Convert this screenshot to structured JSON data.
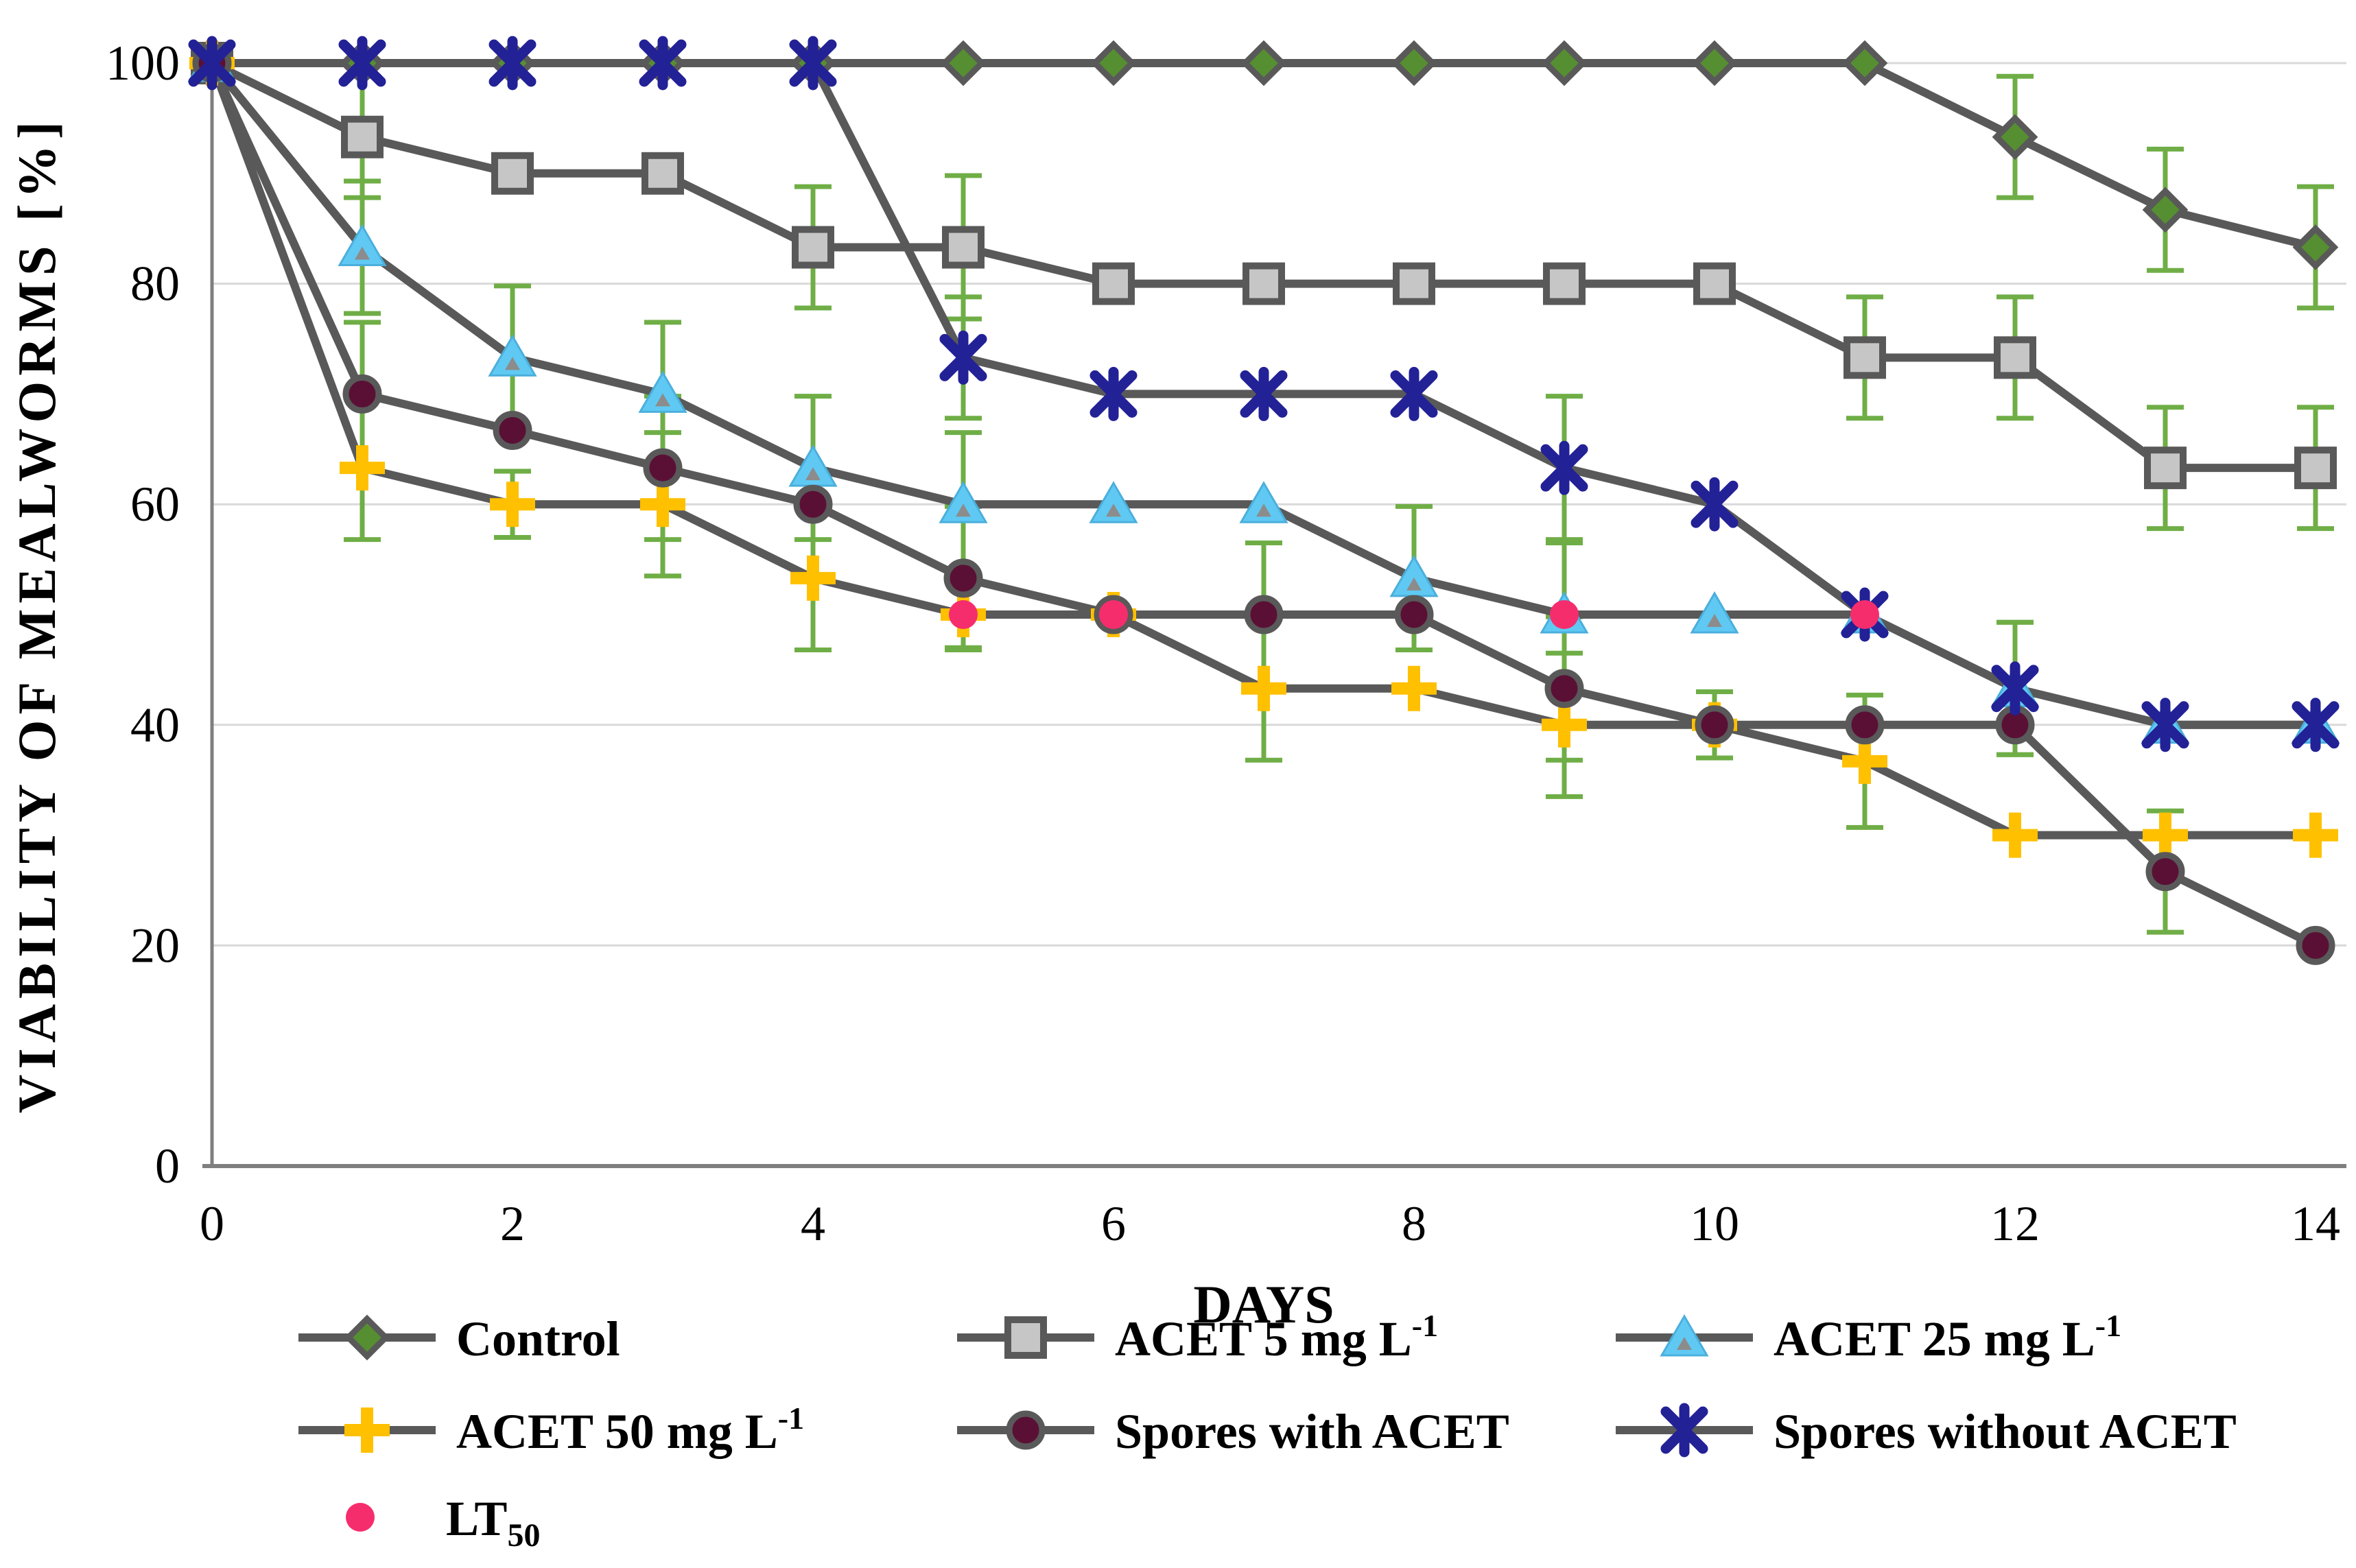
{
  "chart_data": {
    "type": "line",
    "title": "",
    "xlabel": "DAYS",
    "ylabel": "VIABILITY OF MEALWORMS [%]",
    "x": [
      0,
      1,
      2,
      3,
      4,
      5,
      6,
      7,
      8,
      9,
      10,
      11,
      12,
      13,
      14
    ],
    "xlim": [
      0,
      14
    ],
    "ylim": [
      0,
      100
    ],
    "xticks": [
      0,
      2,
      4,
      6,
      8,
      10,
      12,
      14
    ],
    "yticks": [
      0,
      20,
      40,
      60,
      80,
      100
    ],
    "grid": "horizontal",
    "legend_position": "bottom",
    "colors": {
      "line": "#595959",
      "grid": "#D9D9D9",
      "axis": "#7F7F7F",
      "error": "#6FAE46",
      "text": "#000000"
    },
    "series": [
      {
        "name": "Control",
        "marker": "diamond",
        "fill": "#568F31",
        "values": [
          100,
          100,
          100,
          100,
          100,
          100,
          100,
          100,
          100,
          100,
          100,
          100,
          93.3,
          86.7,
          83.3
        ],
        "err": [
          null,
          null,
          null,
          null,
          null,
          null,
          null,
          null,
          null,
          null,
          null,
          null,
          5.5,
          5.5,
          5.5
        ]
      },
      {
        "name": "ACET 5 mg L",
        "name_sup": "-1",
        "marker": "square",
        "fill": "#C6C6C6",
        "values": [
          100,
          93.3,
          90,
          90,
          83.3,
          83.3,
          80,
          80,
          80,
          80,
          80,
          73.3,
          73.3,
          63.3,
          63.3
        ],
        "err": [
          null,
          5.5,
          null,
          null,
          5.5,
          6.5,
          null,
          null,
          null,
          null,
          null,
          5.5,
          5.5,
          5.5,
          5.5
        ]
      },
      {
        "name": "ACET 25 mg L",
        "name_sup": "-1",
        "marker": "triangle",
        "fill": "#5FC9F3",
        "values": [
          100,
          83.3,
          73.3,
          70,
          63.3,
          60,
          60,
          60,
          53.3,
          50,
          50,
          50,
          43.3,
          40,
          40
        ],
        "err": [
          null,
          6,
          6.5,
          6.5,
          6.5,
          6.5,
          null,
          null,
          6.5,
          6.5,
          null,
          null,
          6,
          null,
          null
        ]
      },
      {
        "name": "ACET 50 mg L",
        "name_sup": "-1",
        "marker": "plus",
        "fill": "#FFC000",
        "values": [
          100,
          63.3,
          60,
          60,
          53.3,
          50,
          50,
          43.3,
          43.3,
          40,
          40,
          36.7,
          30,
          30,
          30
        ],
        "err": [
          null,
          6.5,
          3,
          6.5,
          6.5,
          3,
          null,
          6.5,
          null,
          6.5,
          null,
          6,
          null,
          null,
          null
        ]
      },
      {
        "name": "Spores with ACET",
        "marker": "circle",
        "fill": "#5A1035",
        "values": [
          100,
          70,
          66.7,
          63.3,
          60,
          53.3,
          50,
          50,
          50,
          43.3,
          40,
          40,
          40,
          26.7,
          20
        ],
        "err": [
          null,
          6.5,
          null,
          6.5,
          null,
          6.5,
          null,
          6.5,
          null,
          6.5,
          3,
          null,
          null,
          5.5,
          null
        ]
      },
      {
        "name": "Spores without ACET",
        "marker": "xstar",
        "fill": "#232196",
        "values": [
          100,
          100,
          100,
          100,
          100,
          73.3,
          70,
          70,
          70,
          63.3,
          60,
          50,
          43.3,
          40,
          40
        ],
        "err": [
          null,
          null,
          null,
          null,
          null,
          5.5,
          null,
          null,
          null,
          6.5,
          null,
          null,
          6,
          null,
          null
        ]
      }
    ],
    "lt50": {
      "name": "LT",
      "name_sub": "50",
      "color": "#F62D6D",
      "points": [
        {
          "x": 5,
          "y": 50
        },
        {
          "x": 6,
          "y": 50
        },
        {
          "x": 9,
          "y": 50
        },
        {
          "x": 11,
          "y": 50
        }
      ]
    }
  }
}
